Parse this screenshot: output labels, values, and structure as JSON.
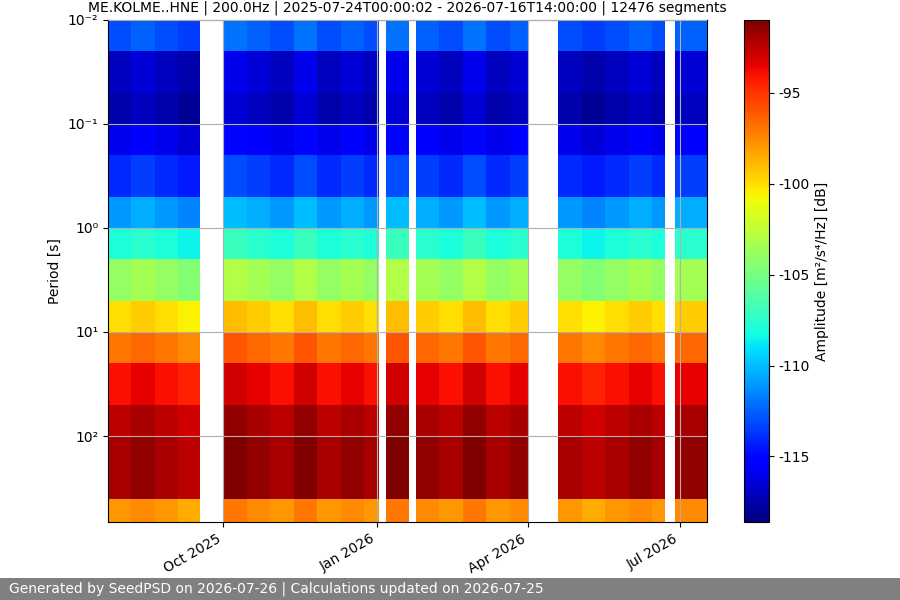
{
  "chart_data": {
    "type": "heatmap",
    "title": "ME.KOLME..HNE | 200.0Hz | 2025-07-24T00:00:02 - 2026-07-16T14:00:00 | 12476 segments",
    "ylabel": "Period [s]",
    "footer": "Generated by SeedPSD on 2026-07-26 | Calculations updated on 2026-07-25",
    "log": "y",
    "grid": true,
    "x": [
      "2025-07-24T00:00:02",
      "2025-08-07",
      "2025-08-21",
      "2025-09-04",
      "2025-09-17",
      "2025-10-01",
      "2025-10-15",
      "2025-10-29",
      "2025-11-12",
      "2025-11-26",
      "2025-12-10",
      "2025-12-24",
      "2026-01-02",
      "2026-01-06",
      "2026-01-20",
      "2026-01-24",
      "2026-02-07",
      "2026-02-21",
      "2026-03-07",
      "2026-03-21",
      "2026-04-01",
      "2026-04-19",
      "2026-05-03",
      "2026-05-17",
      "2026-05-31",
      "2026-06-14",
      "2026-06-22",
      "2026-06-28",
      "2026-07-16T14:00:00"
    ],
    "y": [
      0.01,
      0.02,
      0.05,
      0.1,
      0.2,
      0.5,
      1,
      2,
      5,
      10,
      20,
      50,
      100,
      200,
      400,
      670
    ],
    "cells": [
      [
        -113,
        -112.5,
        -113,
        -113.5,
        null,
        -112,
        -112.5,
        -113,
        -112,
        -113,
        -112.5,
        -113,
        null,
        -112,
        null,
        -112.5,
        -113,
        -112,
        -113,
        -112.5,
        null,
        -113,
        -113.5,
        -113,
        -112.5,
        -113,
        null,
        -112.5
      ],
      [
        -117,
        -116.5,
        -117,
        -117.5,
        null,
        -116,
        -116.5,
        -117,
        -116,
        -117,
        -116.5,
        -117,
        null,
        -116,
        null,
        -116.5,
        -117,
        -116,
        -117,
        -116.5,
        null,
        -117,
        -117.5,
        -117,
        -116.5,
        -117,
        null,
        -116.5
      ],
      [
        -117.5,
        -117,
        -117.5,
        -118,
        null,
        -116.5,
        -117,
        -117.5,
        -116.5,
        -117.5,
        -117,
        -117.5,
        null,
        -116.5,
        null,
        -117,
        -117.5,
        -116.5,
        -117.5,
        -117,
        null,
        -117.5,
        -118,
        -117.5,
        -117,
        -117.5,
        null,
        -117
      ],
      [
        -116,
        -115.5,
        -116,
        -116.5,
        null,
        -115,
        -115.5,
        -116,
        -115,
        -116,
        -115.5,
        -116,
        null,
        -115,
        null,
        -115.5,
        -116,
        -115,
        -116,
        -115.5,
        null,
        -116,
        -116.5,
        -116,
        -115.5,
        -116,
        null,
        -115.5
      ],
      [
        -114,
        -113.5,
        -114,
        -114.5,
        null,
        -113,
        -113.5,
        -114,
        -113,
        -114,
        -113.5,
        -114,
        null,
        -113,
        null,
        -113.5,
        -114,
        -113,
        -114,
        -113.5,
        null,
        -114,
        -114.5,
        -114,
        -113.5,
        -114,
        null,
        -113.5
      ],
      [
        -111,
        -110.5,
        -111,
        -111.5,
        null,
        -110,
        -110.5,
        -111,
        -110,
        -111,
        -110.5,
        -111,
        null,
        -110,
        null,
        -110.5,
        -111,
        -110,
        -111,
        -110.5,
        null,
        -111,
        -111.5,
        -111,
        -110.5,
        -111,
        null,
        -110.5
      ],
      [
        -108,
        -107.5,
        -108,
        -108.5,
        null,
        -107,
        -107.5,
        -108,
        -107,
        -108,
        -107.5,
        -108,
        null,
        -107,
        null,
        -107.5,
        -108,
        -107,
        -108,
        -107.5,
        null,
        -108,
        -108.5,
        -108,
        -107.5,
        -108,
        null,
        -107.5
      ],
      [
        -104,
        -103.5,
        -104,
        -104.5,
        null,
        -103,
        -103.5,
        -104,
        -103,
        -104,
        -103.5,
        -104,
        null,
        -103,
        null,
        -103.5,
        -104,
        -103,
        -104,
        -103.5,
        null,
        -104,
        -104.5,
        -104,
        -103.5,
        -104,
        null,
        -103.5
      ],
      [
        -100,
        -99.5,
        -100,
        -100.5,
        null,
        -99,
        -99.5,
        -100,
        -99,
        -100,
        -99.5,
        -100,
        null,
        -99,
        null,
        -99.5,
        -100,
        -99,
        -100,
        -99.5,
        null,
        -100,
        -100.5,
        -100,
        -99.5,
        -100,
        null,
        -99.5
      ],
      [
        -97,
        -96.5,
        -97,
        -97.5,
        null,
        -96,
        -96.5,
        -97,
        -96,
        -97,
        -96.5,
        -97,
        null,
        -96,
        null,
        -96.5,
        -97,
        -96,
        -97,
        -96.5,
        null,
        -97,
        -97.5,
        -97,
        -96.5,
        -97,
        null,
        -96.5
      ],
      [
        -94,
        -93.5,
        -94,
        -94.5,
        null,
        -93,
        -93.5,
        -94,
        -93,
        -94,
        -93.5,
        -94,
        null,
        -93,
        null,
        -93.5,
        -94,
        -93,
        -94,
        -93.5,
        null,
        -94,
        -94.5,
        -94,
        -93.5,
        -94,
        null,
        -93.5
      ],
      [
        -92.5,
        -92,
        -92.5,
        -93,
        null,
        -91.5,
        -92,
        -92.5,
        -91.5,
        -92.5,
        -92,
        -92.5,
        null,
        -91.5,
        null,
        -92,
        -92.5,
        -91.5,
        -92.5,
        -92,
        null,
        -92.5,
        -93,
        -92.5,
        -92,
        -92.5,
        null,
        -92
      ],
      [
        -92,
        -91.5,
        -92,
        -92.5,
        null,
        -91,
        -91.5,
        -92,
        -91,
        -92,
        -91.5,
        -92,
        null,
        -91,
        null,
        -91.5,
        -92,
        -91,
        -92,
        -91.5,
        null,
        -92,
        -92.5,
        -92,
        -91.5,
        -92,
        null,
        -91.5
      ],
      [
        -92,
        -91.5,
        -92,
        -92.5,
        null,
        -91,
        -91.5,
        -92,
        -91,
        -92,
        -91.5,
        -92,
        null,
        -91,
        null,
        -91.5,
        -92,
        -91,
        -92,
        -91.5,
        null,
        -92,
        -92.5,
        -92,
        -91.5,
        -92,
        null,
        -91.5
      ],
      [
        -98,
        -97.5,
        -98,
        -98.5,
        null,
        -97,
        -97.5,
        -98,
        -97,
        -98,
        -97.5,
        -98,
        null,
        -97,
        null,
        -97.5,
        -98,
        -97,
        -98,
        -97.5,
        null,
        -98,
        -98.5,
        -98,
        -97.5,
        -98,
        null,
        -97.5
      ]
    ],
    "xlim": [
      "2025-07-24T00:00:02",
      "2026-07-16T14:00:00"
    ],
    "xticks": [
      {
        "value": "2025-10-01",
        "label": "Oct 2025"
      },
      {
        "value": "2026-01-01",
        "label": "Jan 2026"
      },
      {
        "value": "2026-04-01",
        "label": "Apr 2026"
      },
      {
        "value": "2026-07-01",
        "label": "Jul 2026"
      }
    ],
    "ylim": [
      670,
      0.01
    ],
    "yticks": [
      {
        "value": 0.01,
        "label": "10⁻²"
      },
      {
        "value": 0.1,
        "label": "10⁻¹"
      },
      {
        "value": 1,
        "label": "10⁰"
      },
      {
        "value": 10,
        "label": "10¹"
      },
      {
        "value": 100,
        "label": "10²"
      }
    ],
    "colorbar": {
      "label": "Amplitude [m²/s⁴/Hz] [dB]",
      "range": [
        -118.6,
        -91
      ],
      "ticks": [
        -115,
        -110,
        -105,
        -100,
        -95
      ]
    }
  }
}
